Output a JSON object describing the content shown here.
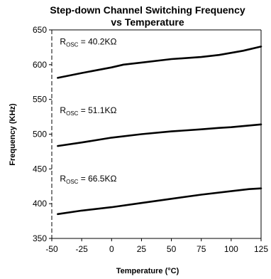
{
  "chart_data": {
    "type": "line",
    "title": [
      "Step-down Channel Switching Frequency",
      "vs Temperature"
    ],
    "xlabel": "Temperature (°C)",
    "ylabel": "Frequency (KHz)",
    "xlim": [
      -50,
      125
    ],
    "ylim": [
      350,
      650
    ],
    "xticks": [
      -50,
      -25,
      0,
      25,
      50,
      75,
      100,
      125
    ],
    "yticks": [
      350,
      400,
      450,
      500,
      550,
      600,
      650
    ],
    "grid": false,
    "series": [
      {
        "name": "ROSC = 40.2KΩ",
        "x": [
          -45,
          -25,
          0,
          10,
          25,
          50,
          75,
          90,
          110,
          125
        ],
        "y": [
          581,
          588,
          596,
          600,
          603,
          608,
          611,
          614,
          620,
          626
        ]
      },
      {
        "name": "ROSC = 51.1KΩ",
        "x": [
          -45,
          -25,
          0,
          25,
          50,
          75,
          90,
          100,
          125
        ],
        "y": [
          483,
          488,
          495,
          500,
          504,
          507,
          509,
          510,
          514
        ]
      },
      {
        "name": "ROSC = 66.5KΩ",
        "x": [
          -45,
          -25,
          0,
          25,
          50,
          75,
          100,
          115,
          125
        ],
        "y": [
          385,
          390,
          395,
          401,
          407,
          413,
          418,
          421,
          422
        ]
      }
    ],
    "annotations": [
      {
        "prefix": "R",
        "sub": "OSC",
        "suffix": " = 40.2KΩ",
        "x": -45,
        "y": 629
      },
      {
        "prefix": "R",
        "sub": "OSC",
        "suffix": " = 51.1KΩ",
        "x": -45,
        "y": 530
      },
      {
        "prefix": "R",
        "sub": "OSC",
        "suffix": " = 66.5KΩ",
        "x": -45,
        "y": 432
      }
    ]
  }
}
